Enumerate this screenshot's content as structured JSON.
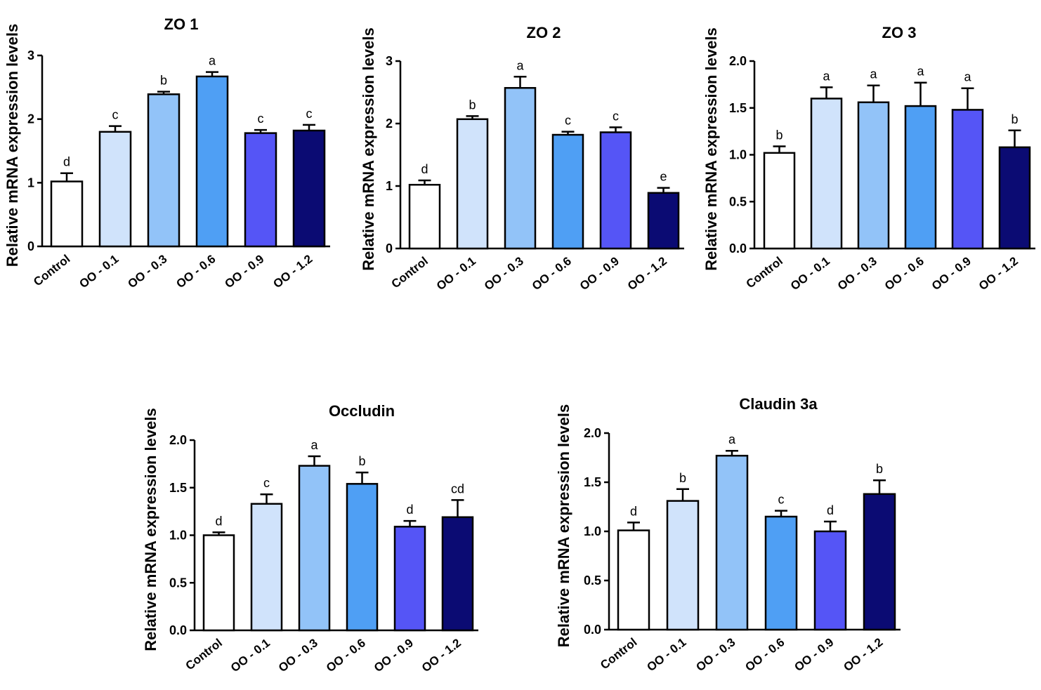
{
  "colors": {
    "control": "#ffffff",
    "oo_0_1": "#d0e3fb",
    "oo_0_3": "#92c3f8",
    "oo_0_6": "#4f9ff4",
    "oo_0_9": "#5555f6",
    "oo_1_2": "#0b0b73",
    "axis": "#000000"
  },
  "chart_data": [
    {
      "type": "bar",
      "title": "ZO 1",
      "ylabel": "Relative mRNA expression levels",
      "xlabel": "",
      "categories": [
        "Control",
        "OO - 0.1",
        "OO - 0.3",
        "OO - 0.6",
        "OO - 0.9",
        "OO - 1.2"
      ],
      "values": [
        1.02,
        1.8,
        2.39,
        2.67,
        1.78,
        1.82
      ],
      "errors": [
        0.13,
        0.09,
        0.04,
        0.07,
        0.05,
        0.09
      ],
      "significance": [
        "d",
        "c",
        "b",
        "a",
        "c",
        "c"
      ],
      "ylim": [
        0,
        3
      ],
      "yticks": [
        "0",
        "1",
        "2",
        "3"
      ]
    },
    {
      "type": "bar",
      "title": "ZO 2",
      "ylabel": "Relative mRNA expression levels",
      "xlabel": "",
      "categories": [
        "Control",
        "OO - 0.1",
        "OO - 0.3",
        "OO - 0.6",
        "OO - 0.9",
        "OO - 1.2"
      ],
      "values": [
        1.02,
        2.07,
        2.57,
        1.82,
        1.86,
        0.89
      ],
      "errors": [
        0.07,
        0.05,
        0.18,
        0.05,
        0.08,
        0.08
      ],
      "significance": [
        "d",
        "b",
        "a",
        "c",
        "c",
        "e"
      ],
      "ylim": [
        0,
        3
      ],
      "yticks": [
        "0",
        "1",
        "2",
        "3"
      ]
    },
    {
      "type": "bar",
      "title": "ZO 3",
      "ylabel": "Relative mRNA expression levels",
      "xlabel": "",
      "categories": [
        "Control",
        "OO - 0.1",
        "OO - 0.3",
        "OO - 0.6",
        "OO - 0.9",
        "OO - 1.2"
      ],
      "values": [
        1.02,
        1.6,
        1.56,
        1.52,
        1.48,
        1.08
      ],
      "errors": [
        0.07,
        0.12,
        0.18,
        0.25,
        0.23,
        0.18
      ],
      "significance": [
        "b",
        "a",
        "a",
        "a",
        "a",
        "b"
      ],
      "ylim": [
        0,
        2
      ],
      "yticks": [
        "0.0",
        "0.5",
        "1.0",
        "1.5",
        "2.0"
      ]
    },
    {
      "type": "bar",
      "title": "Occludin",
      "ylabel": "Relative mRNA expression levels",
      "xlabel": "",
      "categories": [
        "Control",
        "OO - 0.1",
        "OO - 0.3",
        "OO - 0.6",
        "OO - 0.9",
        "OO - 1.2"
      ],
      "values": [
        1.0,
        1.33,
        1.73,
        1.54,
        1.09,
        1.19
      ],
      "errors": [
        0.03,
        0.1,
        0.1,
        0.12,
        0.06,
        0.18
      ],
      "significance": [
        "d",
        "c",
        "a",
        "b",
        "d",
        "cd"
      ],
      "ylim": [
        0,
        2
      ],
      "yticks": [
        "0.0",
        "0.5",
        "1.0",
        "1.5",
        "2.0"
      ]
    },
    {
      "type": "bar",
      "title": "Claudin 3a",
      "ylabel": "Relative mRNA expression levels",
      "xlabel": "",
      "categories": [
        "Control",
        "OO - 0.1",
        "OO - 0.3",
        "OO - 0.6",
        "OO - 0.9",
        "OO - 1.2"
      ],
      "values": [
        1.01,
        1.31,
        1.77,
        1.15,
        1.0,
        1.38
      ],
      "errors": [
        0.08,
        0.12,
        0.05,
        0.06,
        0.1,
        0.14
      ],
      "significance": [
        "d",
        "b",
        "a",
        "c",
        "d",
        "b"
      ],
      "ylim": [
        0,
        2
      ],
      "yticks": [
        "0.0",
        "0.5",
        "1.0",
        "1.5",
        "2.0"
      ]
    }
  ]
}
